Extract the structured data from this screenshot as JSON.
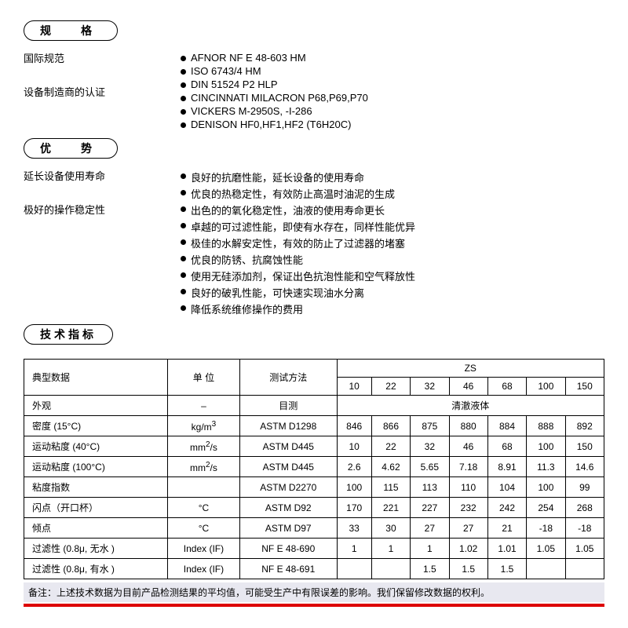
{
  "sections": {
    "spec_header": "规　格",
    "adv_header": "优　势",
    "tech_header": "技术指标"
  },
  "spec": {
    "labels": {
      "intl": "国际规范",
      "certs": "设备制造商的认证"
    },
    "items": [
      "AFNOR NF E 48-603 HM",
      "ISO 6743/4 HM",
      "DIN 51524 P2 HLP",
      "CINCINNATI MILACRON P68,P69,P70",
      "VICKERS M-2950S, -I-286",
      "DENISON HF0,HF1,HF2 (T6H20C)"
    ]
  },
  "adv": {
    "labels": {
      "life": "延长设备使用寿命",
      "stability": "极好的操作稳定性"
    },
    "items": [
      "良好的抗磨性能，延长设备的使用寿命",
      "优良的热稳定性，有效防止高温时油泥的生成",
      "出色的的氧化稳定性，油液的使用寿命更长",
      "卓越的可过滤性能，即使有水存在，同样性能优异",
      "极佳的水解安定性，有效的防止了过滤器的堵塞",
      "优良的防锈、抗腐蚀性能",
      "使用无硅添加剂，保证出色抗泡性能和空气释放性",
      "良好的破乳性能，可快速实现油水分离",
      "降低系统维修操作的费用"
    ]
  },
  "table": {
    "head": {
      "typical": "典型数据",
      "unit": "单 位",
      "method": "测试方法",
      "product": "ZS",
      "grades": [
        "10",
        "22",
        "32",
        "46",
        "68",
        "100",
        "150"
      ],
      "clear_liquid": "清澈液体"
    },
    "rows": [
      {
        "label": "外观",
        "unit": "–",
        "method": "目测",
        "span": true
      },
      {
        "label": "密度 (15°C)",
        "unit_html": "kg/m<span class='sup'>3</span>",
        "method": "ASTM D1298",
        "vals": [
          "846",
          "866",
          "875",
          "880",
          "884",
          "888",
          "892"
        ]
      },
      {
        "label": "运动粘度 (40°C)",
        "unit_html": "mm<span class='sup'>2</span>/s",
        "method": "ASTM D445",
        "vals": [
          "10",
          "22",
          "32",
          "46",
          "68",
          "100",
          "150"
        ]
      },
      {
        "label": "运动粘度 (100°C)",
        "unit_html": "mm<span class='sup'>2</span>/s",
        "method": "ASTM D445",
        "vals": [
          "2.6",
          "4.62",
          "5.65",
          "7.18",
          "8.91",
          "11.3",
          "14.6"
        ]
      },
      {
        "label": "粘度指数",
        "unit": "",
        "method": "ASTM D2270",
        "vals": [
          "100",
          "115",
          "113",
          "110",
          "104",
          "100",
          "99"
        ]
      },
      {
        "label": "闪点（开口杯）",
        "unit": "°C",
        "method": "ASTM D92",
        "vals": [
          "170",
          "221",
          "227",
          "232",
          "242",
          "254",
          "268"
        ]
      },
      {
        "label": "倾点",
        "unit": "°C",
        "method": "ASTM D97",
        "vals": [
          "33",
          "30",
          "27",
          "27",
          "21",
          "-18",
          "-18"
        ]
      },
      {
        "label": "过滤性 (0.8μ, 无水 )",
        "unit": "Index (IF)",
        "method": "NF E 48-690",
        "vals": [
          "1",
          "1",
          "1",
          "1.02",
          "1.01",
          "1.05",
          "1.05"
        ]
      },
      {
        "label": "过滤性 (0.8μ, 有水 )",
        "unit": "Index (IF)",
        "method": "NF E 48-691",
        "vals": [
          "",
          "",
          "1.5",
          "1.5",
          "1.5",
          "",
          ""
        ]
      }
    ]
  },
  "footnote": "备注：上述技术数据为目前产品检测结果的平均值，可能受生产中有限误差的影响。我们保留修改数据的权利。"
}
